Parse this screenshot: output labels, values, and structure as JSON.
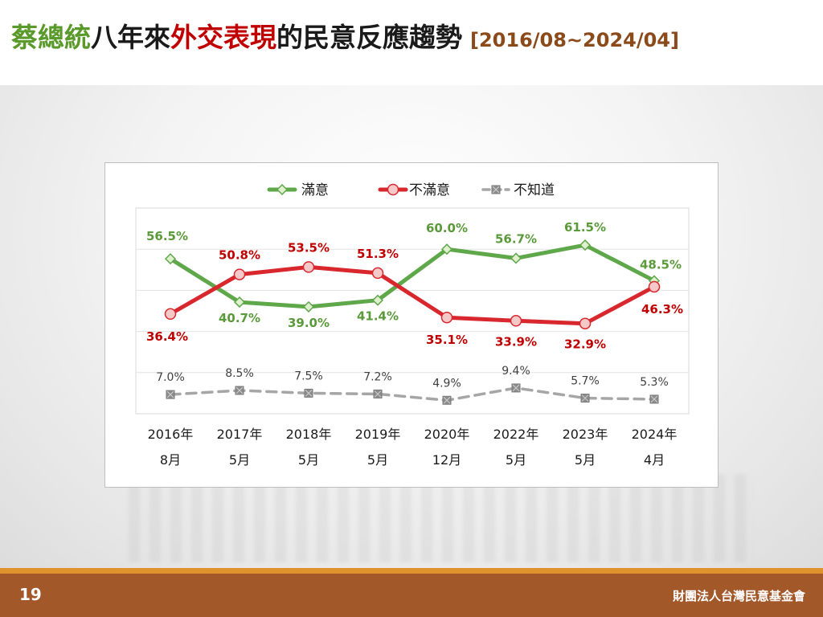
{
  "slide": {
    "title_part1": "蔡總統",
    "title_part2": "八年來",
    "title_part3": "外交表現",
    "title_part4": "的民意反應趨勢",
    "title_range": "[2016/08~2024/04]",
    "page_number": "19",
    "organization": "財團法人台灣民意基金會",
    "colors": {
      "title_green": "#5a9a2b",
      "title_red": "#c00000",
      "footer": "#a3582a",
      "footer_stripe": "#e0922c"
    }
  },
  "chart_data": {
    "type": "line",
    "categories": [
      [
        "2016年",
        "8月"
      ],
      [
        "2017年",
        "5月"
      ],
      [
        "2018年",
        "5月"
      ],
      [
        "2019年",
        "5月"
      ],
      [
        "2020年",
        "12月"
      ],
      [
        "2022年",
        "5月"
      ],
      [
        "2023年",
        "5月"
      ],
      [
        "2024年",
        "4月"
      ]
    ],
    "series": [
      {
        "name": "滿意",
        "values": [
          56.5,
          40.7,
          39.0,
          41.4,
          60.0,
          56.7,
          61.5,
          48.5
        ],
        "labels": [
          "56.5%",
          "40.7%",
          "39.0%",
          "41.4%",
          "60.0%",
          "56.7%",
          "61.5%",
          "48.5%"
        ],
        "color": "#5ea84a",
        "marker": "diamond",
        "dashed": false
      },
      {
        "name": "不滿意",
        "values": [
          36.4,
          50.8,
          53.5,
          51.3,
          35.1,
          33.9,
          32.9,
          46.3
        ],
        "labels": [
          "36.4%",
          "50.8%",
          "53.5%",
          "51.3%",
          "35.1%",
          "33.9%",
          "32.9%",
          "46.3%"
        ],
        "color": "#d9272e",
        "marker": "circle",
        "dashed": false
      },
      {
        "name": "不知道",
        "values": [
          7.0,
          8.5,
          7.5,
          7.2,
          4.9,
          9.4,
          5.7,
          5.3
        ],
        "labels": [
          "7.0%",
          "8.5%",
          "7.5%",
          "7.2%",
          "4.9%",
          "9.4%",
          "5.7%",
          "5.3%"
        ],
        "color": "#a6a6a6",
        "marker": "square-x",
        "dashed": true
      }
    ],
    "ylim": [
      0,
      75
    ],
    "grid": "horizontal",
    "legend_position": "top-center"
  }
}
